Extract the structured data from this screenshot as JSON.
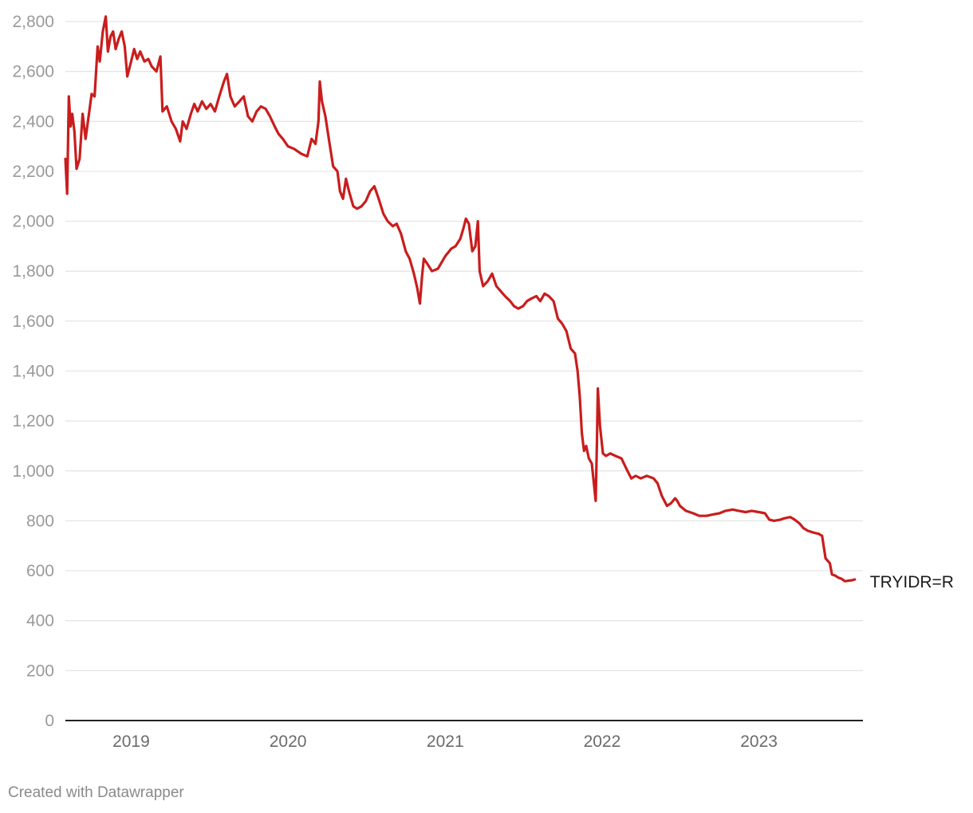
{
  "chart_data": {
    "type": "line",
    "title": "",
    "xlabel": "",
    "ylabel": "",
    "ylim": [
      0,
      2800
    ],
    "xlim": [
      "2018-08-01",
      "2023-08-31"
    ],
    "y_ticks": [
      0,
      200,
      400,
      600,
      800,
      1000,
      1200,
      1400,
      1600,
      1800,
      2000,
      2200,
      2400,
      2600,
      2800
    ],
    "y_tick_labels": [
      "0",
      "200",
      "400",
      "600",
      "800",
      "1,000",
      "1,200",
      "1,400",
      "1,600",
      "1,800",
      "2,000",
      "2,200",
      "2,400",
      "2,600",
      "2,800"
    ],
    "x_ticks": [
      "2019-01-01",
      "2020-01-01",
      "2021-01-01",
      "2022-01-01",
      "2023-01-01"
    ],
    "x_tick_labels": [
      "2019",
      "2020",
      "2021",
      "2022",
      "2023"
    ],
    "grid": true,
    "colors": {
      "series": "#c91d1d",
      "grid": "#e3e3e3",
      "axis": "#222222"
    },
    "series": [
      {
        "name": "TRYIDR=R",
        "points": [
          [
            "2018-08-01",
            2250
          ],
          [
            "2018-08-05",
            2110
          ],
          [
            "2018-08-09",
            2500
          ],
          [
            "2018-08-13",
            2380
          ],
          [
            "2018-08-17",
            2430
          ],
          [
            "2018-08-22",
            2360
          ],
          [
            "2018-08-27",
            2210
          ],
          [
            "2018-09-03",
            2250
          ],
          [
            "2018-09-10",
            2430
          ],
          [
            "2018-09-17",
            2330
          ],
          [
            "2018-09-24",
            2420
          ],
          [
            "2018-10-01",
            2510
          ],
          [
            "2018-10-08",
            2500
          ],
          [
            "2018-10-15",
            2700
          ],
          [
            "2018-10-20",
            2640
          ],
          [
            "2018-10-27",
            2760
          ],
          [
            "2018-11-03",
            2820
          ],
          [
            "2018-11-08",
            2680
          ],
          [
            "2018-11-14",
            2740
          ],
          [
            "2018-11-20",
            2760
          ],
          [
            "2018-11-26",
            2690
          ],
          [
            "2018-12-03",
            2730
          ],
          [
            "2018-12-10",
            2760
          ],
          [
            "2018-12-17",
            2700
          ],
          [
            "2018-12-23",
            2580
          ],
          [
            "2019-01-01",
            2640
          ],
          [
            "2019-01-08",
            2690
          ],
          [
            "2019-01-15",
            2650
          ],
          [
            "2019-01-22",
            2680
          ],
          [
            "2019-02-01",
            2640
          ],
          [
            "2019-02-10",
            2650
          ],
          [
            "2019-02-18",
            2620
          ],
          [
            "2019-03-01",
            2600
          ],
          [
            "2019-03-10",
            2660
          ],
          [
            "2019-03-15",
            2440
          ],
          [
            "2019-03-25",
            2460
          ],
          [
            "2019-04-05",
            2400
          ],
          [
            "2019-04-15",
            2370
          ],
          [
            "2019-04-25",
            2320
          ],
          [
            "2019-05-01",
            2400
          ],
          [
            "2019-05-10",
            2370
          ],
          [
            "2019-05-20",
            2430
          ],
          [
            "2019-05-28",
            2470
          ],
          [
            "2019-06-05",
            2440
          ],
          [
            "2019-06-15",
            2480
          ],
          [
            "2019-06-25",
            2450
          ],
          [
            "2019-07-05",
            2470
          ],
          [
            "2019-07-15",
            2440
          ],
          [
            "2019-07-25",
            2500
          ],
          [
            "2019-08-05",
            2560
          ],
          [
            "2019-08-12",
            2590
          ],
          [
            "2019-08-20",
            2500
          ],
          [
            "2019-08-30",
            2460
          ],
          [
            "2019-09-10",
            2480
          ],
          [
            "2019-09-20",
            2500
          ],
          [
            "2019-09-30",
            2420
          ],
          [
            "2019-10-10",
            2400
          ],
          [
            "2019-10-20",
            2440
          ],
          [
            "2019-10-30",
            2460
          ],
          [
            "2019-11-10",
            2450
          ],
          [
            "2019-11-20",
            2420
          ],
          [
            "2019-12-01",
            2380
          ],
          [
            "2019-12-10",
            2350
          ],
          [
            "2019-12-20",
            2330
          ],
          [
            "2020-01-01",
            2300
          ],
          [
            "2020-01-15",
            2290
          ],
          [
            "2020-02-01",
            2270
          ],
          [
            "2020-02-15",
            2260
          ],
          [
            "2020-02-25",
            2330
          ],
          [
            "2020-03-05",
            2310
          ],
          [
            "2020-03-12",
            2400
          ],
          [
            "2020-03-15",
            2560
          ],
          [
            "2020-03-20",
            2480
          ],
          [
            "2020-03-28",
            2420
          ],
          [
            "2020-04-05",
            2330
          ],
          [
            "2020-04-15",
            2220
          ],
          [
            "2020-04-25",
            2200
          ],
          [
            "2020-05-01",
            2120
          ],
          [
            "2020-05-08",
            2090
          ],
          [
            "2020-05-15",
            2170
          ],
          [
            "2020-05-22",
            2120
          ],
          [
            "2020-06-01",
            2060
          ],
          [
            "2020-06-10",
            2050
          ],
          [
            "2020-06-20",
            2060
          ],
          [
            "2020-06-30",
            2080
          ],
          [
            "2020-07-10",
            2120
          ],
          [
            "2020-07-20",
            2140
          ],
          [
            "2020-07-30",
            2090
          ],
          [
            "2020-08-10",
            2030
          ],
          [
            "2020-08-20",
            2000
          ],
          [
            "2020-09-01",
            1980
          ],
          [
            "2020-09-10",
            1990
          ],
          [
            "2020-09-20",
            1950
          ],
          [
            "2020-10-01",
            1880
          ],
          [
            "2020-10-10",
            1850
          ],
          [
            "2020-10-20",
            1790
          ],
          [
            "2020-10-28",
            1730
          ],
          [
            "2020-11-03",
            1670
          ],
          [
            "2020-11-08",
            1780
          ],
          [
            "2020-11-12",
            1850
          ],
          [
            "2020-11-20",
            1830
          ],
          [
            "2020-12-01",
            1800
          ],
          [
            "2020-12-15",
            1810
          ],
          [
            "2021-01-01",
            1860
          ],
          [
            "2021-01-15",
            1890
          ],
          [
            "2021-01-25",
            1900
          ],
          [
            "2021-02-05",
            1930
          ],
          [
            "2021-02-12",
            1970
          ],
          [
            "2021-02-18",
            2010
          ],
          [
            "2021-02-25",
            1990
          ],
          [
            "2021-03-05",
            1880
          ],
          [
            "2021-03-12",
            1900
          ],
          [
            "2021-03-18",
            2000
          ],
          [
            "2021-03-22",
            1800
          ],
          [
            "2021-03-30",
            1740
          ],
          [
            "2021-04-10",
            1760
          ],
          [
            "2021-04-20",
            1790
          ],
          [
            "2021-04-30",
            1740
          ],
          [
            "2021-05-10",
            1720
          ],
          [
            "2021-05-20",
            1700
          ],
          [
            "2021-06-01",
            1680
          ],
          [
            "2021-06-10",
            1660
          ],
          [
            "2021-06-20",
            1650
          ],
          [
            "2021-07-01",
            1660
          ],
          [
            "2021-07-10",
            1680
          ],
          [
            "2021-07-20",
            1690
          ],
          [
            "2021-08-01",
            1700
          ],
          [
            "2021-08-10",
            1680
          ],
          [
            "2021-08-20",
            1710
          ],
          [
            "2021-08-30",
            1700
          ],
          [
            "2021-09-10",
            1680
          ],
          [
            "2021-09-20",
            1610
          ],
          [
            "2021-09-30",
            1590
          ],
          [
            "2021-10-10",
            1560
          ],
          [
            "2021-10-20",
            1490
          ],
          [
            "2021-10-30",
            1470
          ],
          [
            "2021-11-05",
            1400
          ],
          [
            "2021-11-10",
            1300
          ],
          [
            "2021-11-15",
            1150
          ],
          [
            "2021-11-20",
            1080
          ],
          [
            "2021-11-25",
            1100
          ],
          [
            "2021-12-01",
            1050
          ],
          [
            "2021-12-08",
            1030
          ],
          [
            "2021-12-14",
            930
          ],
          [
            "2021-12-17",
            880
          ],
          [
            "2021-12-20",
            1120
          ],
          [
            "2021-12-22",
            1330
          ],
          [
            "2021-12-27",
            1180
          ],
          [
            "2022-01-03",
            1070
          ],
          [
            "2022-01-10",
            1060
          ],
          [
            "2022-01-20",
            1070
          ],
          [
            "2022-02-01",
            1060
          ],
          [
            "2022-02-15",
            1050
          ],
          [
            "2022-03-01",
            1000
          ],
          [
            "2022-03-10",
            970
          ],
          [
            "2022-03-20",
            980
          ],
          [
            "2022-04-01",
            970
          ],
          [
            "2022-04-15",
            980
          ],
          [
            "2022-05-01",
            970
          ],
          [
            "2022-05-10",
            950
          ],
          [
            "2022-05-20",
            900
          ],
          [
            "2022-06-01",
            860
          ],
          [
            "2022-06-10",
            870
          ],
          [
            "2022-06-20",
            890
          ],
          [
            "2022-06-25",
            880
          ],
          [
            "2022-07-01",
            860
          ],
          [
            "2022-07-15",
            840
          ],
          [
            "2022-08-01",
            830
          ],
          [
            "2022-08-15",
            820
          ],
          [
            "2022-09-01",
            820
          ],
          [
            "2022-09-15",
            825
          ],
          [
            "2022-10-01",
            830
          ],
          [
            "2022-10-15",
            840
          ],
          [
            "2022-11-01",
            845
          ],
          [
            "2022-11-15",
            840
          ],
          [
            "2022-12-01",
            835
          ],
          [
            "2022-12-15",
            840
          ],
          [
            "2023-01-01",
            835
          ],
          [
            "2023-01-15",
            830
          ],
          [
            "2023-01-25",
            805
          ],
          [
            "2023-02-05",
            800
          ],
          [
            "2023-02-20",
            805
          ],
          [
            "2023-03-01",
            810
          ],
          [
            "2023-03-15",
            815
          ],
          [
            "2023-03-25",
            805
          ],
          [
            "2023-04-05",
            790
          ],
          [
            "2023-04-15",
            770
          ],
          [
            "2023-04-25",
            760
          ],
          [
            "2023-05-10",
            752
          ],
          [
            "2023-05-20",
            748
          ],
          [
            "2023-05-28",
            740
          ],
          [
            "2023-06-05",
            650
          ],
          [
            "2023-06-15",
            630
          ],
          [
            "2023-06-20",
            585
          ],
          [
            "2023-06-28",
            580
          ],
          [
            "2023-07-05",
            572
          ],
          [
            "2023-07-12",
            568
          ],
          [
            "2023-07-20",
            558
          ],
          [
            "2023-07-28",
            560
          ],
          [
            "2023-08-05",
            562
          ],
          [
            "2023-08-12",
            565
          ]
        ]
      }
    ]
  },
  "footer": {
    "credit": "Created with Datawrapper"
  }
}
